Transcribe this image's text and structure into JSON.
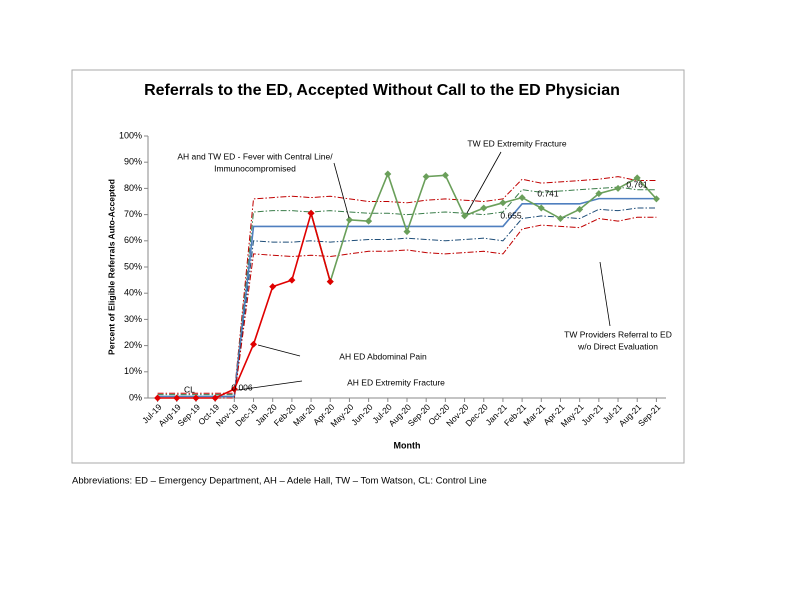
{
  "chart_data": {
    "type": "line",
    "title": "Referrals to the ED, Accepted Without Call to the ED Physician",
    "x_label": "Month",
    "y_label": "Percent of Eligible Referrals Auto-Accepted",
    "categories": [
      "Jul-19",
      "Aug-19",
      "Sep-19",
      "Oct-19",
      "Nov-19",
      "Dec-19",
      "Jan-20",
      "Feb-20",
      "Mar-20",
      "Apr-20",
      "May-20",
      "Jun-20",
      "Jul-20",
      "Aug-20",
      "Sep-20",
      "Oct-20",
      "Nov-20",
      "Dec-20",
      "Jan-21",
      "Feb-21",
      "Mar-21",
      "Apr-21",
      "May-21",
      "Jun-21",
      "Jul-21",
      "Aug-21",
      "Sep-21"
    ],
    "ylim": [
      0,
      100
    ],
    "yticks": [
      {
        "value": 0,
        "label": "0%"
      },
      {
        "value": 10,
        "label": "10%"
      },
      {
        "value": 20,
        "label": "20%"
      },
      {
        "value": 30,
        "label": "30%"
      },
      {
        "value": 40,
        "label": "40%"
      },
      {
        "value": 50,
        "label": "50%"
      },
      {
        "value": 60,
        "label": "60%"
      },
      {
        "value": 70,
        "label": "70%"
      },
      {
        "value": 80,
        "label": "80%"
      },
      {
        "value": 90,
        "label": "90%"
      },
      {
        "value": 100,
        "label": "100%"
      }
    ],
    "series": [
      {
        "color": "#c00000",
        "style": "dashdot",
        "values": [
          1.8,
          1.8,
          1.8,
          1.8,
          1.8,
          76,
          76.5,
          77,
          76.5,
          77,
          76,
          75,
          75,
          74.5,
          75.5,
          76,
          75.5,
          75,
          76,
          83.5,
          82,
          82.5,
          83,
          83.5,
          84.5,
          83,
          83
        ]
      },
      {
        "color": "#3a7d4a",
        "style": "dashdot",
        "values": [
          1.3,
          1.3,
          1.3,
          1.3,
          1.3,
          71,
          71.5,
          71.5,
          71,
          71.5,
          71,
          70.5,
          70.5,
          70,
          70.5,
          71,
          70.5,
          70,
          71,
          79.5,
          78.5,
          79,
          79.5,
          80,
          80.5,
          79.5,
          79.5
        ]
      },
      {
        "color": "#4f7fbf",
        "style": "solid",
        "values": [
          0.6,
          0.6,
          0.6,
          0.6,
          0.6,
          65.5,
          65.5,
          65.5,
          65.5,
          65.5,
          65.5,
          65.5,
          65.5,
          65.5,
          65.5,
          65.5,
          65.5,
          65.5,
          65.5,
          74.1,
          74.1,
          74.1,
          74.1,
          76.1,
          76.1,
          76.1,
          76.1
        ],
        "value_labels": [
          null,
          null,
          null,
          null,
          "0.006",
          null,
          null,
          null,
          null,
          null,
          null,
          null,
          null,
          null,
          null,
          null,
          null,
          null,
          "0.655",
          null,
          null,
          "0.741",
          null,
          null,
          null,
          "0.761",
          null
        ]
      },
      {
        "color": "#1f4e79",
        "style": "dashdot",
        "values": [
          0,
          0,
          0,
          0,
          0,
          60,
          59.5,
          59.5,
          60,
          59.5,
          60,
          60.5,
          60.5,
          61,
          60.5,
          60,
          60.5,
          61,
          60,
          68.5,
          69.5,
          69,
          68.5,
          72,
          71.5,
          72.5,
          72.5
        ]
      },
      {
        "color": "#c00000",
        "style": "dashdot",
        "values": [
          0,
          0,
          0,
          0,
          0,
          55,
          54.5,
          54,
          54.5,
          54,
          55,
          56,
          56,
          56.5,
          55.5,
          55,
          55.5,
          56,
          55,
          64.5,
          66,
          65.5,
          65,
          68.5,
          67.5,
          69,
          69
        ]
      },
      {
        "color": "#6a9f5a",
        "style": "solid",
        "marker": "diamond",
        "values": [
          null,
          null,
          null,
          null,
          null,
          null,
          null,
          null,
          70.5,
          44.4,
          68,
          67.5,
          85.5,
          63.5,
          84.5,
          85,
          69.5,
          72.5,
          74.5,
          76.5,
          72.5,
          68.5,
          72,
          78,
          80,
          84,
          76
        ]
      },
      {
        "color": "#e00000",
        "style": "solid",
        "marker": "diamond",
        "values": [
          0,
          0,
          0,
          0,
          3.4,
          20.5,
          42.5,
          45,
          70.5,
          44.4,
          null,
          null,
          null,
          null,
          null,
          null,
          null,
          null,
          null,
          null,
          null,
          null,
          null,
          null,
          null,
          null,
          null
        ]
      }
    ],
    "annotations": [
      "CL",
      "AH and TW ED - Fever with Central Line/",
      "Immunocompromised",
      "TW ED Extremity Fracture",
      "TW Providers Referral to ED",
      "w/o Direct Evaluation",
      "AH ED Abdominal Pain",
      "AH ED Extremity Fracture"
    ],
    "footnote": "Abbreviations: ED – Emergency Department, AH – Adele Hall, TW – Tom Watson, CL: Control Line"
  }
}
